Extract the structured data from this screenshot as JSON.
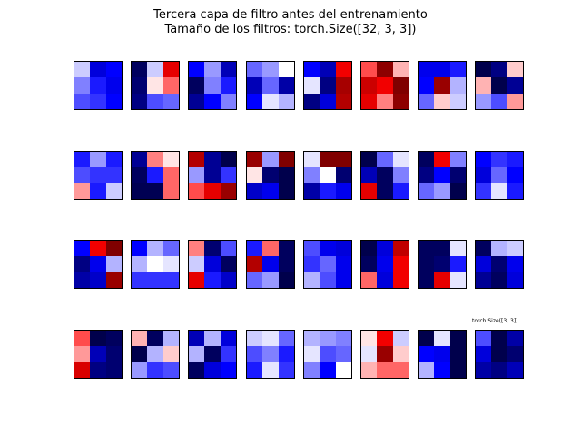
{
  "title": "Tercera capa de filtro antes del entrenamiento",
  "subtitle": "Tamaño de los filtros: torch.Size([32, 3, 3])",
  "panel_label": "torch.Size([3, 3])",
  "colormap": {
    "name": "seismic",
    "low": "#00004c",
    "blue": "#0000ff",
    "mid": "#ffffff",
    "red": "#ff0000",
    "high": "#800000"
  },
  "chart_data": {
    "type": "heatmap",
    "title": "Tercera capa de filtro antes del entrenamiento",
    "subtitle": "Tamaño de los filtros: torch.Size([32, 3, 3])",
    "layout": {
      "rows": 4,
      "cols": 8
    },
    "value_range": [
      -1,
      1
    ],
    "filters": [
      [
        [
          -0.1,
          -0.6,
          -0.5
        ],
        [
          -0.25,
          -0.45,
          -0.55
        ],
        [
          -0.35,
          -0.4,
          -0.5
        ]
      ],
      [
        [
          -0.95,
          -0.1,
          0.6
        ],
        [
          -0.9,
          0.05,
          0.3
        ],
        [
          -0.85,
          -0.35,
          -0.3
        ]
      ],
      [
        [
          -0.5,
          -0.2,
          -0.7
        ],
        [
          -0.95,
          -0.25,
          -0.45
        ],
        [
          -0.8,
          -0.5,
          -0.25
        ]
      ],
      [
        [
          -0.3,
          -0.2,
          0.0
        ],
        [
          -0.7,
          -0.3,
          -0.75
        ],
        [
          -0.5,
          -0.05,
          -0.15
        ]
      ],
      [
        [
          -0.5,
          -0.7,
          0.55
        ],
        [
          -0.05,
          -0.85,
          0.85
        ],
        [
          -0.85,
          -0.6,
          0.8
        ]
      ],
      [
        [
          0.35,
          0.95,
          0.15
        ],
        [
          0.7,
          0.55,
          1.2
        ],
        [
          0.6,
          0.25,
          0.95
        ]
      ],
      [
        [
          -0.55,
          -0.55,
          -0.45
        ],
        [
          -0.5,
          0.9,
          -0.15
        ],
        [
          -0.3,
          0.1,
          -0.1
        ]
      ],
      [
        [
          -1.3,
          -0.85,
          0.1
        ],
        [
          0.15,
          -1.2,
          -0.8
        ],
        [
          -0.2,
          -0.35,
          0.2
        ]
      ],
      [
        [
          -0.45,
          -0.2,
          -0.45
        ],
        [
          -0.35,
          -0.4,
          -0.4
        ],
        [
          0.2,
          -0.45,
          -0.1
        ]
      ],
      [
        [
          -0.8,
          0.25,
          0.05
        ],
        [
          -0.95,
          -0.45,
          0.3
        ],
        [
          -0.98,
          -0.98,
          0.3
        ]
      ],
      [
        [
          0.8,
          -0.8,
          -1.1
        ],
        [
          -0.2,
          -0.8,
          -0.4
        ],
        [
          0.35,
          0.6,
          0.9
        ]
      ],
      [
        [
          0.9,
          -0.2,
          1.2
        ],
        [
          0.05,
          -0.9,
          -1.3
        ],
        [
          -0.65,
          -0.55,
          -1.25
        ]
      ],
      [
        [
          -0.05,
          1.1,
          1.05
        ],
        [
          -0.25,
          0.0,
          -0.9
        ],
        [
          -0.75,
          -0.45,
          -0.55
        ]
      ],
      [
        [
          -1.3,
          -0.3,
          -0.05
        ],
        [
          -0.7,
          -0.95,
          -0.25
        ],
        [
          0.6,
          -0.95,
          -0.45
        ]
      ],
      [
        [
          -0.95,
          0.55,
          -0.25
        ],
        [
          -0.85,
          -0.5,
          -0.9
        ],
        [
          -0.3,
          -0.2,
          -1.3
        ]
      ],
      [
        [
          -0.5,
          -0.4,
          -0.45
        ],
        [
          -0.6,
          -0.3,
          -0.5
        ],
        [
          -0.4,
          -0.05,
          -0.45
        ]
      ],
      [
        [
          -0.5,
          0.55,
          1.3
        ],
        [
          -0.85,
          -0.55,
          -0.15
        ],
        [
          -0.75,
          -0.65,
          0.9
        ]
      ],
      [
        [
          -0.5,
          -0.15,
          -0.3
        ],
        [
          -0.15,
          0.0,
          -0.05
        ],
        [
          -0.4,
          -0.4,
          -0.4
        ]
      ],
      [
        [
          0.25,
          -0.9,
          -0.35
        ],
        [
          -0.1,
          -0.6,
          -0.95
        ],
        [
          0.6,
          -0.45,
          -0.65
        ]
      ],
      [
        [
          -0.45,
          0.3,
          -0.95
        ],
        [
          0.8,
          -0.55,
          -0.95
        ],
        [
          -0.3,
          -0.2,
          -1.25
        ]
      ],
      [
        [
          -0.35,
          -0.55,
          -0.6
        ],
        [
          -0.4,
          -0.3,
          -0.55
        ],
        [
          -0.15,
          -0.35,
          -0.55
        ]
      ],
      [
        [
          -1.15,
          -0.6,
          0.75
        ],
        [
          -0.95,
          -0.55,
          0.55
        ],
        [
          0.3,
          -0.6,
          0.55
        ]
      ],
      [
        [
          -0.95,
          -0.95,
          -0.05
        ],
        [
          -0.95,
          -0.9,
          -0.45
        ],
        [
          -0.95,
          0.6,
          -0.05
        ]
      ],
      [
        [
          -0.95,
          -0.15,
          -0.1
        ],
        [
          -0.6,
          -0.9,
          -0.55
        ],
        [
          -0.8,
          -0.95,
          -0.6
        ]
      ],
      [
        [
          0.35,
          -1.25,
          -0.95
        ],
        [
          0.2,
          -0.7,
          -0.9
        ],
        [
          0.65,
          -0.85,
          -0.9
        ]
      ],
      [
        [
          0.15,
          -0.95,
          -0.15
        ],
        [
          -1.2,
          -0.15,
          0.1
        ],
        [
          -0.2,
          -0.4,
          -0.35
        ]
      ],
      [
        [
          -0.7,
          -0.15,
          -0.6
        ],
        [
          -0.15,
          -0.95,
          -0.4
        ],
        [
          -0.95,
          -0.6,
          -0.5
        ]
      ],
      [
        [
          -0.1,
          -0.05,
          -0.3
        ],
        [
          -0.35,
          -0.25,
          -0.45
        ],
        [
          -0.45,
          -0.05,
          -0.4
        ]
      ],
      [
        [
          -0.15,
          -0.2,
          -0.25
        ],
        [
          -0.05,
          -0.35,
          -0.3
        ],
        [
          -0.25,
          -0.5,
          0.0
        ]
      ],
      [
        [
          0.05,
          0.55,
          -0.1
        ],
        [
          -0.05,
          0.9,
          0.1
        ],
        [
          0.15,
          0.3,
          0.3
        ]
      ],
      [
        [
          -1.3,
          -0.05,
          -1.1
        ],
        [
          -0.5,
          -0.55,
          -1.1
        ],
        [
          -0.15,
          -0.5,
          -1.2
        ]
      ],
      [
        [
          -0.35,
          -1.25,
          -0.75
        ],
        [
          -0.6,
          -1.05,
          -0.9
        ],
        [
          -0.75,
          -0.85,
          -0.7
        ]
      ]
    ]
  }
}
